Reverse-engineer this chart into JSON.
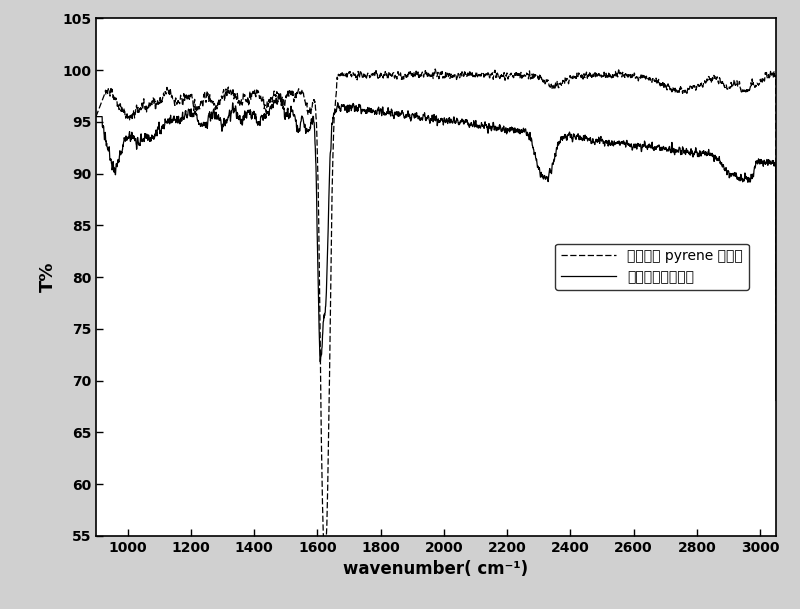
{
  "xlabel": "wavenumber( cm⁻¹)",
  "ylabel": "T%",
  "xlim": [
    900,
    3050
  ],
  "ylim": [
    55,
    105
  ],
  "xticks": [
    1000,
    1200,
    1400,
    1600,
    1800,
    2000,
    2200,
    2400,
    2600,
    2800,
    3000
  ],
  "yticks": [
    55,
    60,
    65,
    70,
    75,
    80,
    85,
    90,
    95,
    100,
    105
  ],
  "legend_label_1": "丙醇羟基 pyrene 希夫等",
  "legend_label_2": "修饰后的硅纳米线",
  "line1_color": "black",
  "line2_color": "black",
  "background_color": "white",
  "figsize": [
    8.0,
    6.09
  ],
  "dpi": 100
}
